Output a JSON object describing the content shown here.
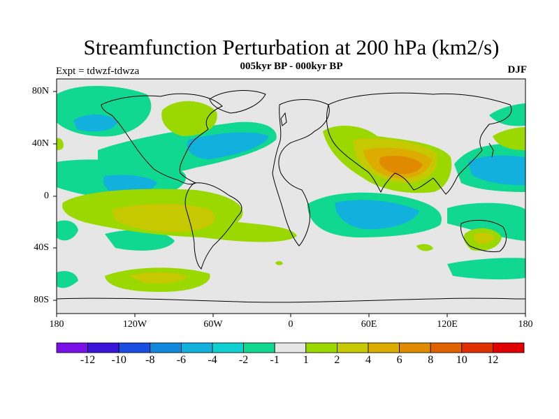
{
  "title": "Streamfunction Perturbation at 200 hPa (km2/s)",
  "subtitle": "005kyr BP - 000kyr BP",
  "left_label": "Expt = tdwzf-tdwza",
  "right_label": "DJF",
  "lat_ticks": [
    "80N",
    "40N",
    "0",
    "40S",
    "80S"
  ],
  "lon_ticks": [
    "180",
    "120W",
    "60W",
    "0",
    "60E",
    "120E",
    "180"
  ],
  "colorbar": {
    "labels": [
      "-12",
      "-10",
      "-8",
      "-6",
      "-4",
      "-2",
      "-1",
      "1",
      "2",
      "4",
      "6",
      "8",
      "10",
      "12"
    ],
    "colors": [
      "#7a10e8",
      "#3a14d8",
      "#1a4ee0",
      "#1288dc",
      "#12b0dc",
      "#10cfd0",
      "#10d890",
      "#e6e6e6",
      "#9ad800",
      "#c6c800",
      "#dcac00",
      "#e08a00",
      "#e06200",
      "#e03000",
      "#e00000"
    ]
  },
  "colors": {
    "background_field": "#e6e6e6",
    "coastline": "#000000"
  }
}
